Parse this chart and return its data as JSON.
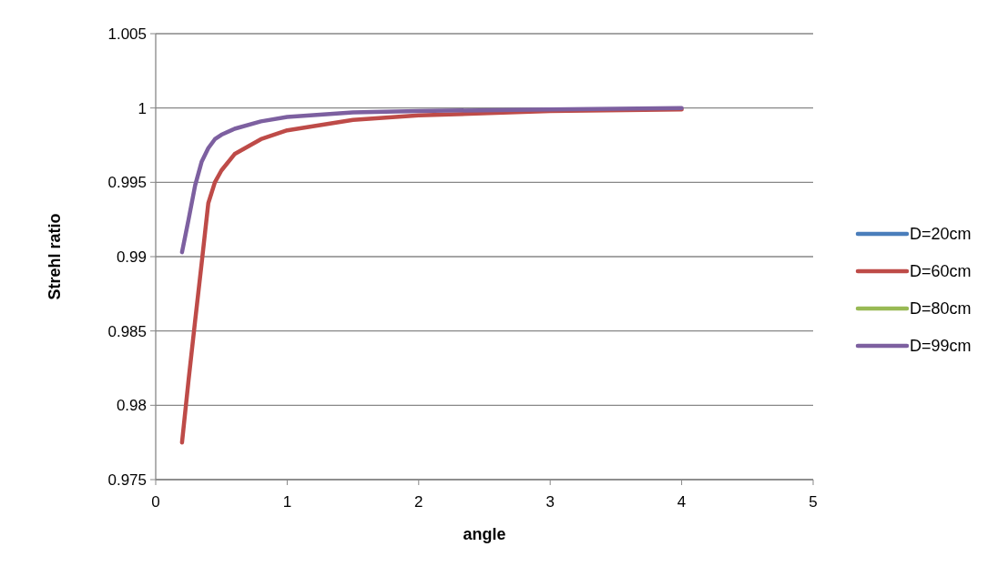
{
  "chart_data": {
    "type": "line",
    "xlabel": "angle",
    "ylabel": "Strehl ratio",
    "xlim": [
      0,
      5
    ],
    "xticks": [
      0,
      1,
      2,
      3,
      4,
      5
    ],
    "ylim": [
      0.975,
      1.005
    ],
    "yticks": [
      0.975,
      0.98,
      0.985,
      0.99,
      0.995,
      1,
      1.005
    ],
    "grid": "y",
    "legend": "right",
    "marker": "none",
    "line_style": "solid",
    "x": [
      0.2,
      0.25,
      0.3,
      0.35,
      0.4,
      0.45,
      0.5,
      0.6,
      0.8,
      1,
      1.5,
      2,
      3,
      4
    ],
    "series": [
      {
        "name": "D=20cm",
        "color": "#4a7ebb",
        "values": [
          null,
          null,
          null,
          null,
          null,
          null,
          null,
          null,
          null,
          null,
          null,
          null,
          null,
          null
        ]
      },
      {
        "name": "D=60cm",
        "color": "#be4b48",
        "values": [
          0.9775,
          0.9817,
          0.9857,
          0.9896,
          0.9936,
          0.995,
          0.9958,
          0.9969,
          0.9979,
          0.9985,
          0.9992,
          0.9995,
          0.9998,
          0.9999
        ]
      },
      {
        "name": "D=80cm",
        "color": "#98b954",
        "values": [
          null,
          null,
          null,
          null,
          null,
          null,
          null,
          null,
          null,
          null,
          null,
          null,
          null,
          null
        ]
      },
      {
        "name": "D=99cm",
        "color": "#7d60a0",
        "values": [
          0.9903,
          0.9925,
          0.9948,
          0.9964,
          0.9973,
          0.9979,
          0.9982,
          0.9986,
          0.9991,
          0.9994,
          0.9997,
          0.9998,
          0.9999,
          1
        ]
      }
    ]
  }
}
